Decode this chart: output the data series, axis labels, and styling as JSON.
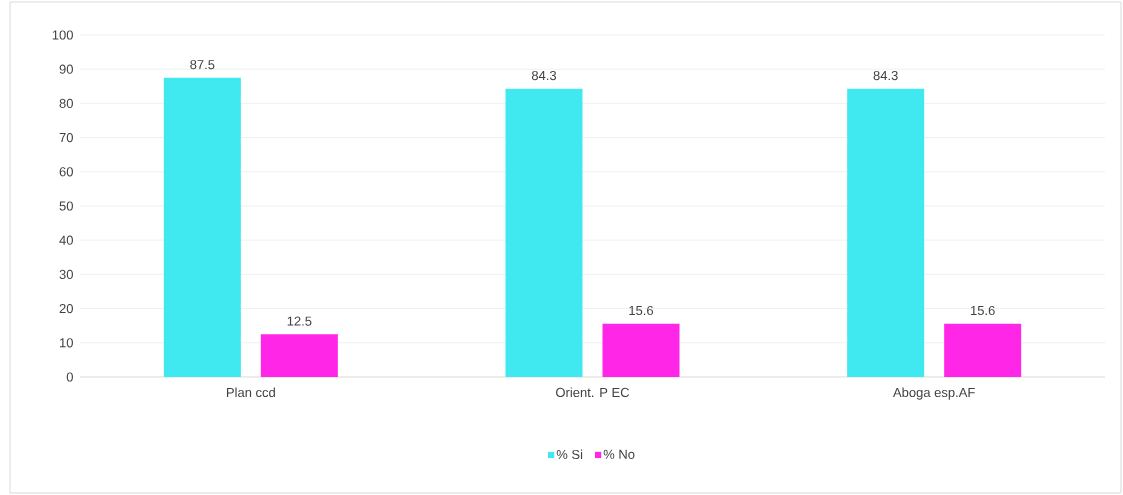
{
  "chart_data": {
    "type": "bar",
    "categories": [
      "Plan ccd",
      "Orient. P EC",
      "Aboga esp.AF"
    ],
    "series": [
      {
        "name": "% Si",
        "color": "#40e9f0",
        "values": [
          87.5,
          84.3,
          84.3
        ]
      },
      {
        "name": "% No",
        "color": "#ff26e8",
        "values": [
          12.5,
          15.6,
          15.6
        ]
      }
    ],
    "ylim": [
      0,
      100
    ],
    "yticks": [
      0,
      10,
      20,
      30,
      40,
      50,
      60,
      70,
      80,
      90,
      100
    ],
    "grid": "y",
    "legend": "bottom",
    "data_labels": true
  }
}
